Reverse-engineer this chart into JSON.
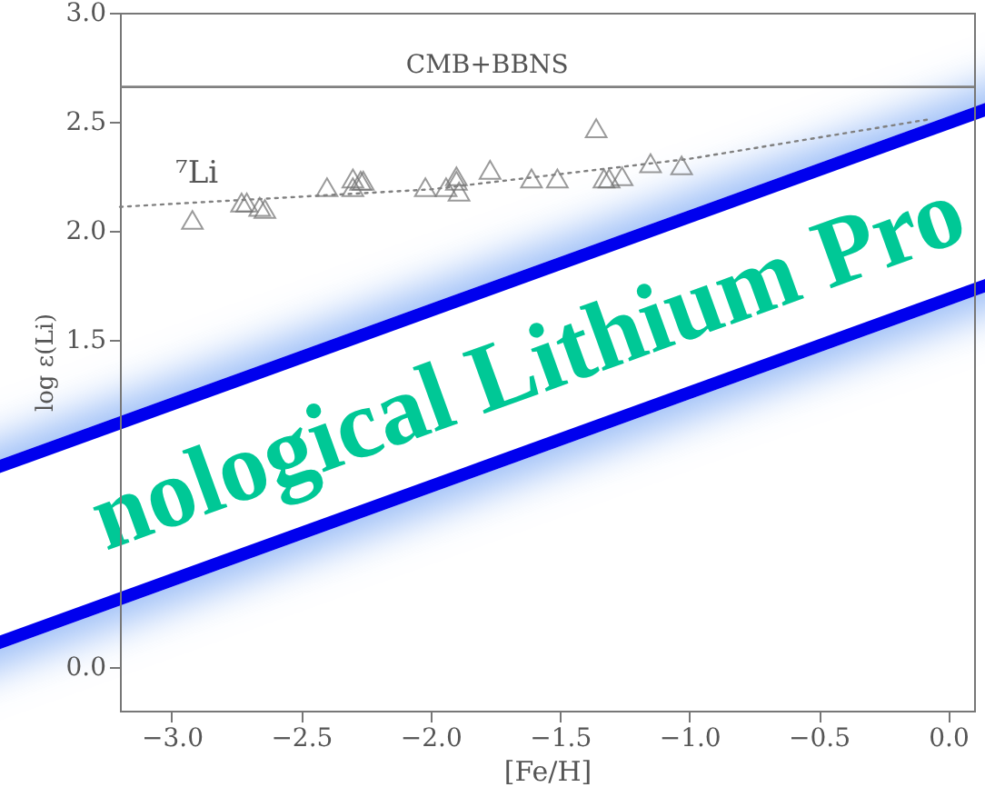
{
  "chart_data": {
    "type": "scatter",
    "xlabel": "[Fe/H]",
    "ylabel": "log ε(Li)",
    "xlim": [
      -3.2,
      0.1
    ],
    "ylim": [
      -0.2,
      3.0
    ],
    "xticks": [
      {
        "value": -3,
        "label": "−3.0"
      },
      {
        "value": -2.5,
        "label": "−2.5"
      },
      {
        "value": -2,
        "label": "−2.0"
      },
      {
        "value": -1.5,
        "label": "−1.5"
      },
      {
        "value": -1,
        "label": "−1.0"
      },
      {
        "value": -0.5,
        "label": "−0.5"
      },
      {
        "value": 0,
        "label": "0.0"
      }
    ],
    "yticks": [
      {
        "value": 0,
        "label": "0.0"
      },
      {
        "value": 1.5,
        "label": "1.5"
      },
      {
        "value": 2,
        "label": "2.0"
      },
      {
        "value": 2.5,
        "label": "2.5"
      },
      {
        "value": 3,
        "label": "3.0"
      }
    ],
    "grid": false,
    "series": [
      {
        "marker": "triangle",
        "color": "#707070",
        "x": [
          -2.92,
          -2.73,
          -2.71,
          -2.66,
          -2.64,
          -2.4,
          -2.3,
          -2.3,
          -2.27,
          -2.26,
          -2.02,
          -1.94,
          -1.9,
          -1.9,
          -1.89,
          -1.77,
          -1.61,
          -1.51,
          -1.36,
          -1.33,
          -1.31,
          -1.26,
          -1.15,
          -1.03
        ],
        "values": [
          2.05,
          2.13,
          2.13,
          2.11,
          2.1,
          2.2,
          2.24,
          2.2,
          2.23,
          2.23,
          2.2,
          2.2,
          2.25,
          2.23,
          2.18,
          2.28,
          2.24,
          2.24,
          2.47,
          2.24,
          2.24,
          2.25,
          2.31,
          2.3
        ]
      },
      {
        "type": "line",
        "line_style": "dotted",
        "color": "#808080",
        "x": [
          -3.2,
          -2.0,
          -1.0,
          -0.08
        ],
        "values": [
          2.11,
          2.19,
          2.33,
          2.51
        ]
      }
    ],
    "ref_lines": [
      {
        "axis": "y",
        "value": 2.66,
        "label": "CMB+BBNS",
        "color": "#808080"
      }
    ],
    "annotations": [
      "⁷Li",
      "nological Lithium Pro"
    ]
  }
}
